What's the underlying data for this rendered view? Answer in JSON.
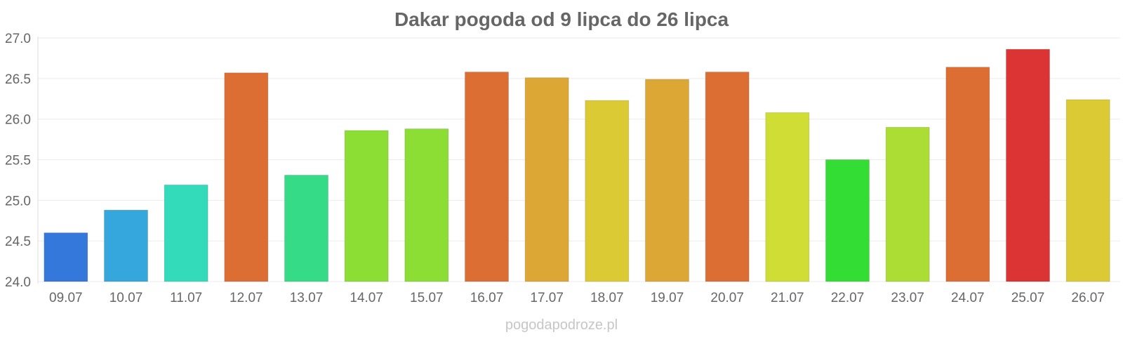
{
  "chart_data": {
    "type": "bar",
    "title": "Dakar pogoda od 9 lipca do 26 lipca",
    "xlabel": "",
    "ylabel": "",
    "ylim": [
      24.0,
      27.0
    ],
    "yticks": [
      "24.0",
      "24.5",
      "25.0",
      "25.5",
      "26.0",
      "26.5",
      "27.0"
    ],
    "grid": true,
    "legend": "none",
    "categories": [
      "09.07",
      "10.07",
      "11.07",
      "12.07",
      "13.07",
      "14.07",
      "15.07",
      "16.07",
      "17.07",
      "18.07",
      "19.07",
      "20.07",
      "21.07",
      "22.07",
      "23.07",
      "24.07",
      "25.07",
      "26.07"
    ],
    "values": [
      24.6,
      24.88,
      25.19,
      26.57,
      25.31,
      25.86,
      25.88,
      26.58,
      26.51,
      26.23,
      26.49,
      26.58,
      26.08,
      25.5,
      25.9,
      26.64,
      26.86,
      26.24
    ],
    "colors": [
      "#3478dc",
      "#36a7dc",
      "#33dbbb",
      "#dd6e33",
      "#36db87",
      "#8cdd34",
      "#8cdd34",
      "#dd6e33",
      "#dca734",
      "#dbca33",
      "#dca734",
      "#dd6e33",
      "#d0dd34",
      "#34dd34",
      "#abdd34",
      "#dd6e33",
      "#dc3434",
      "#dbca33"
    ]
  },
  "watermark": "pogodapodroze.pl"
}
